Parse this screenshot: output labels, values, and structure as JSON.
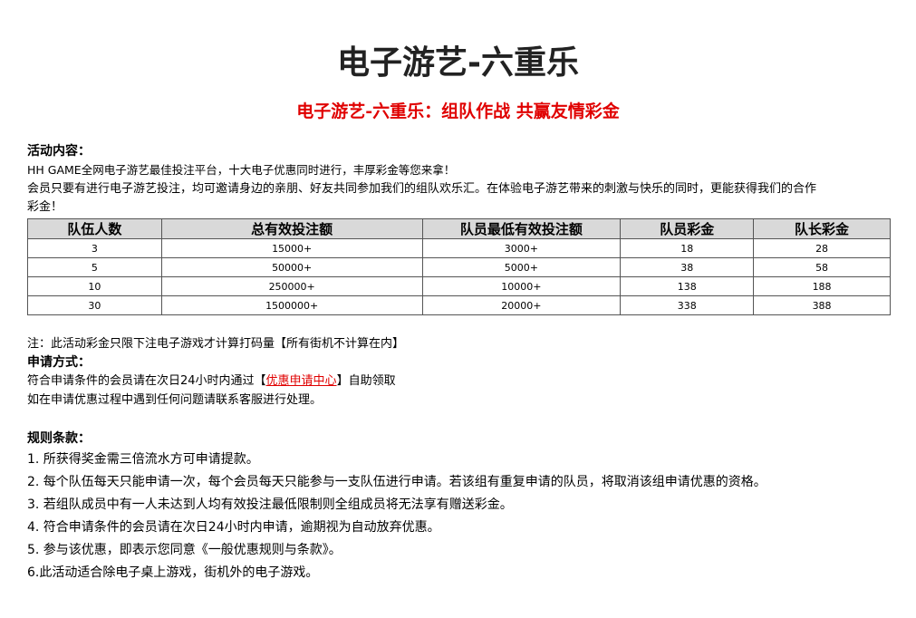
{
  "title": "电子游艺-六重乐",
  "subtitle": "电子游艺-六重乐：组队作战 共赢友情彩金",
  "activity": {
    "heading": "活动内容：",
    "line1": "HH GAME全网电子游艺最佳投注平台，十大电子优惠同时进行，丰厚彩金等您来拿！",
    "line2": " 会员只要有进行电子游艺投注，均可邀请身边的亲朋、好友共同参加我们的组队欢乐汇。在体验电子游艺带来的刺激与快乐的同时，更能获得我们的合作",
    "line3": "彩金！"
  },
  "table": {
    "headers": [
      "队伍人数",
      "总有效投注额",
      "队员最低有效投注额",
      "队员彩金",
      "队长彩金"
    ],
    "rows": [
      [
        "3",
        "15000+",
        "3000+",
        "18",
        "28"
      ],
      [
        "5",
        "50000+",
        "5000+",
        "38",
        "58"
      ],
      [
        "10",
        "250000+",
        "10000+",
        "138",
        "188"
      ],
      [
        "30",
        "1500000+",
        "20000+",
        "338",
        "388"
      ]
    ]
  },
  "note": "注：此活动彩金只限下注电子游戏才计算打码量【所有街机不计算在内】",
  "apply": {
    "heading": "申请方式：",
    "line1_pre": "符合申请条件的会员请在次日24小时内通过【",
    "link": "优惠申请中心",
    "line1_post": "】自助领取",
    "line2": "如在申请优惠过程中遇到任何问题请联系客服进行处理。"
  },
  "rules": {
    "heading": "规则条款：",
    "items": [
      "1. 所获得奖金需三倍流水方可申请提款。",
      "2. 每个队伍每天只能申请一次，每个会员每天只能参与一支队伍进行申请。若该组有重复申请的队员，将取消该组申请优惠的资格。",
      "3. 若组队成员中有一人未达到人均有效投注最低限制则全组成员将无法享有赠送彩金。",
      "4. 符合申请条件的会员请在次日24小时内申请，逾期视为自动放弃优惠。",
      "5. 参与该优惠，即表示您同意《一般优惠规则与条款》。",
      "6.此活动适合除电子桌上游戏，街机外的电子游戏。"
    ]
  },
  "colors": {
    "accent_red": "#e00000",
    "header_bg": "#d9d9d9"
  }
}
